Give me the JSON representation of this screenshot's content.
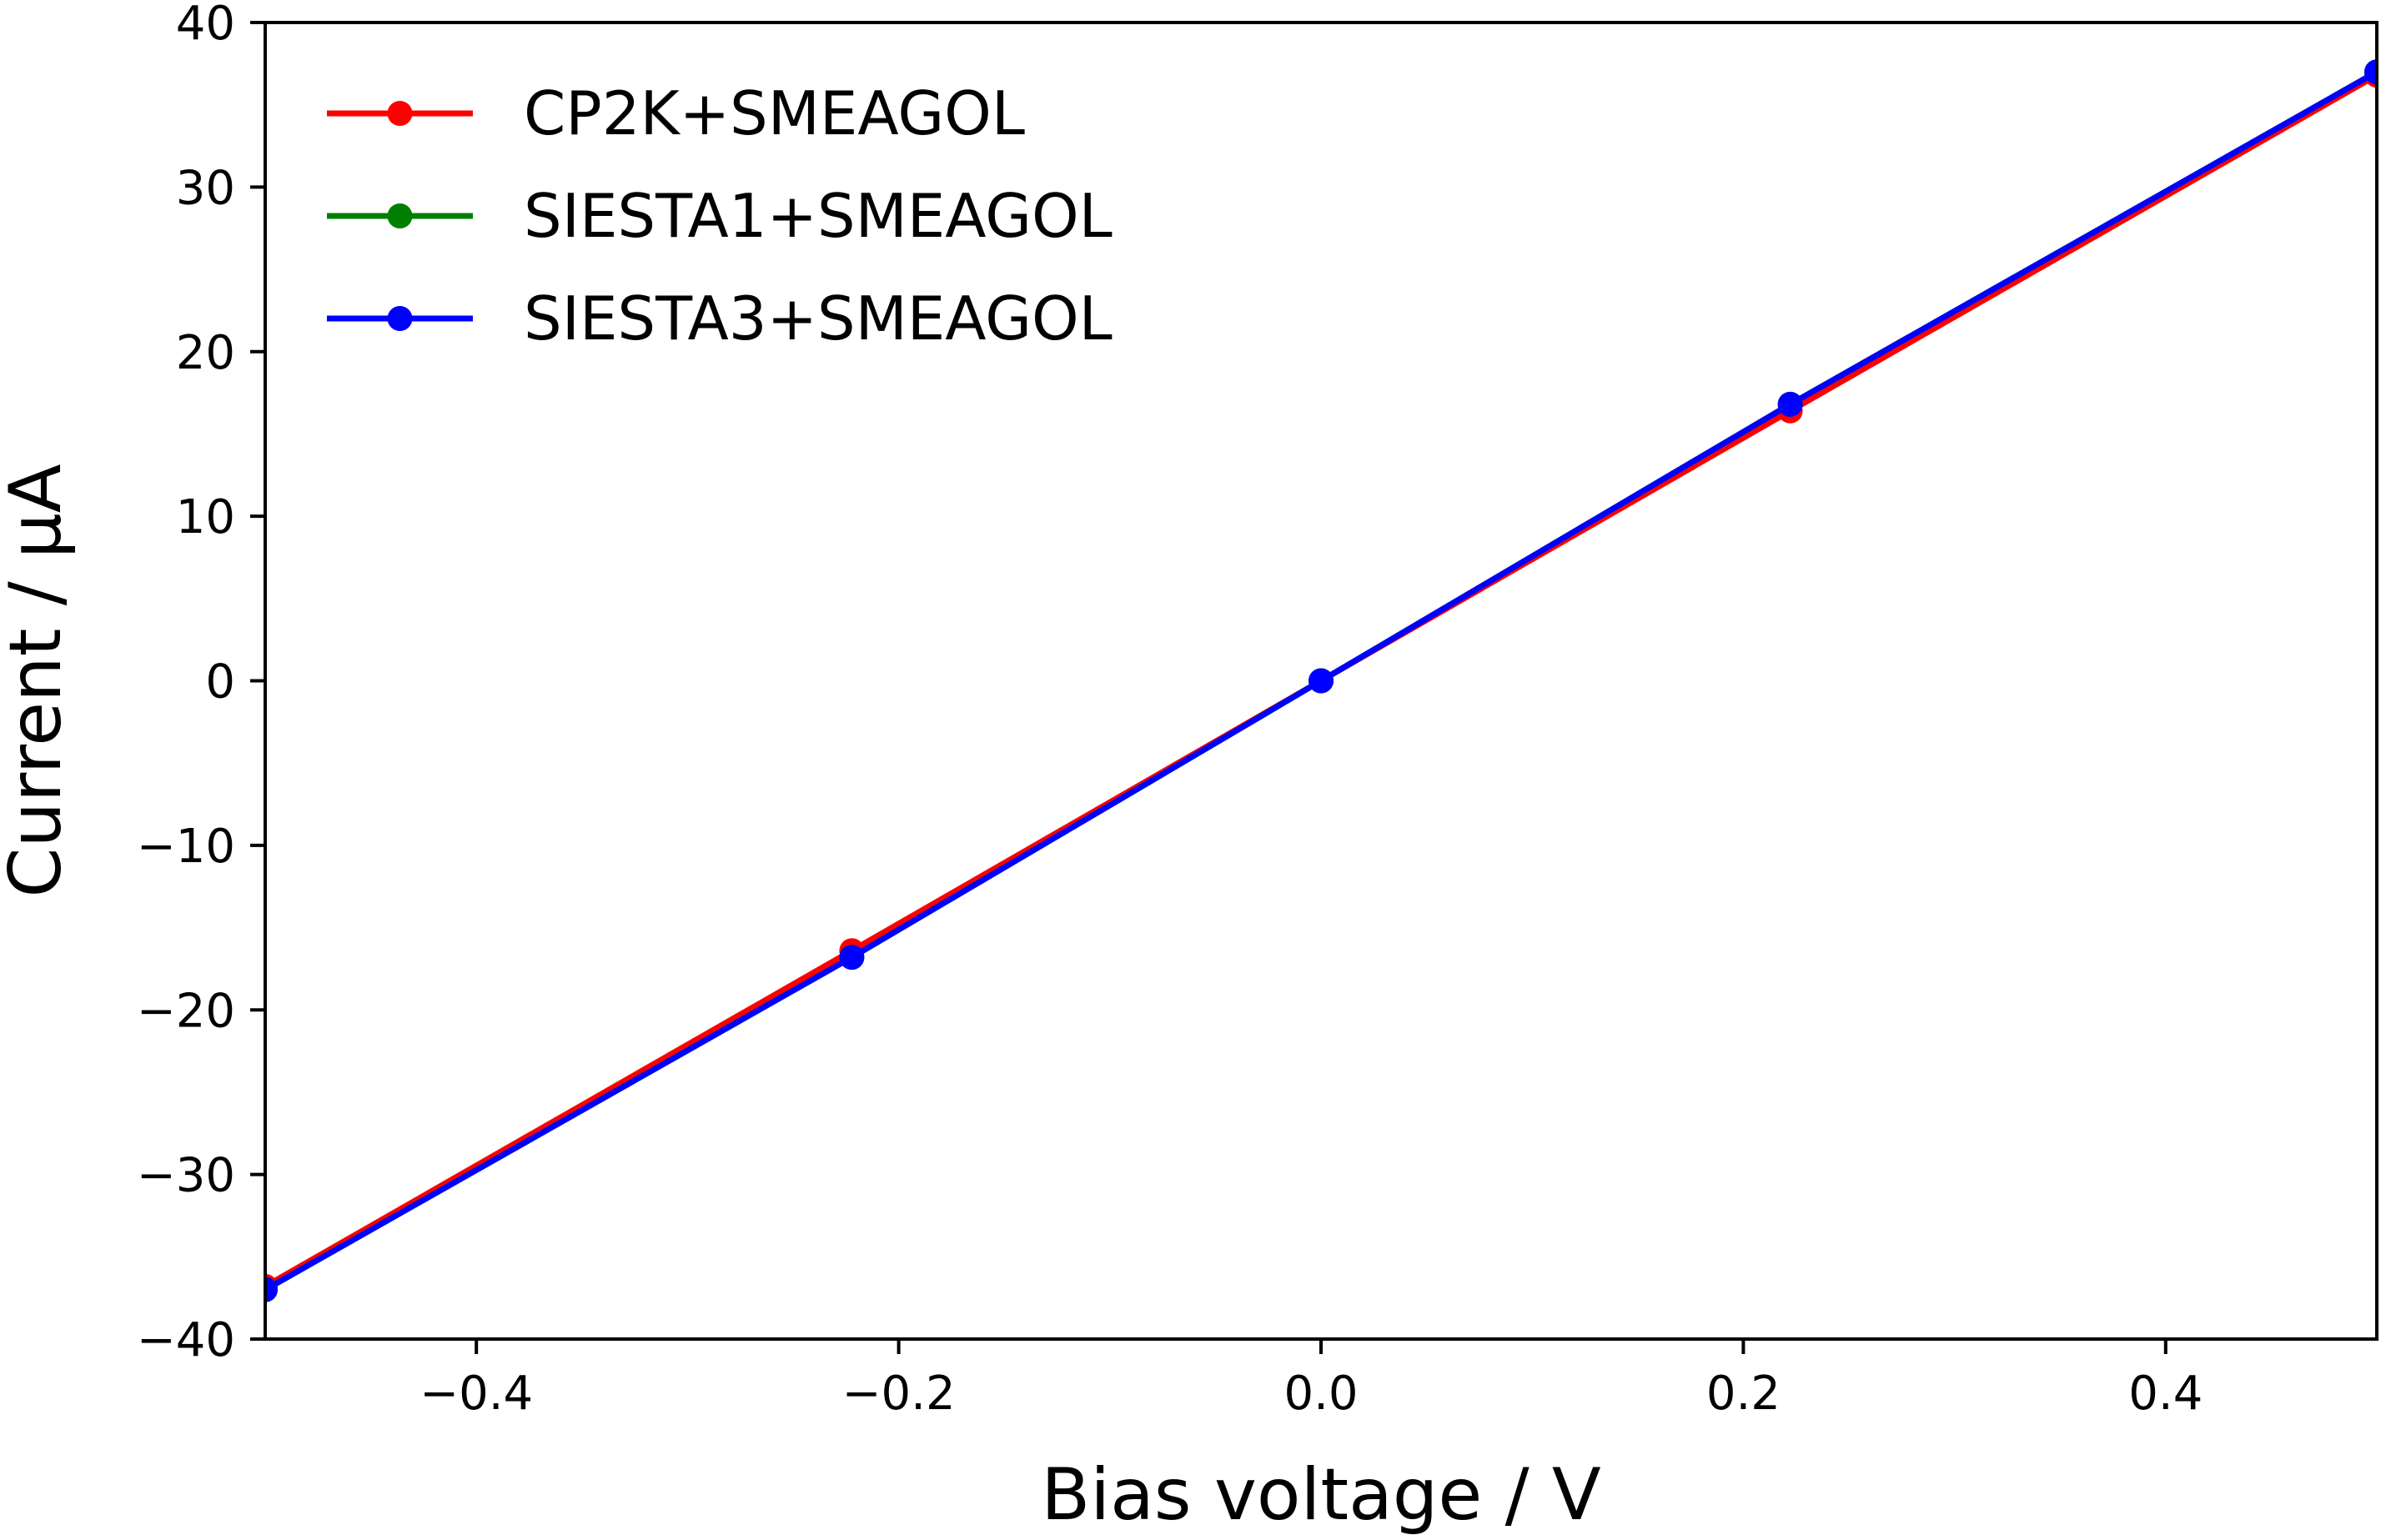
{
  "chart_data": {
    "type": "line",
    "title": "",
    "xlabel": "Bias voltage / V",
    "ylabel": "Current / μA",
    "xlim": [
      -0.5,
      0.5
    ],
    "ylim": [
      -40,
      40
    ],
    "grid": false,
    "legend_position": "top-left",
    "x_ticks": [
      -0.4,
      -0.2,
      0.0,
      0.2,
      0.4
    ],
    "x_tick_labels": [
      "−0.4",
      "−0.2",
      "0.0",
      "0.2",
      "0.4"
    ],
    "y_ticks": [
      -40,
      -30,
      -20,
      -10,
      0,
      10,
      20,
      30,
      40
    ],
    "y_tick_labels": [
      "−40",
      "−30",
      "−20",
      "−10",
      "0",
      "10",
      "20",
      "30",
      "40"
    ],
    "series": [
      {
        "name": "CP2K+SMEAGOL",
        "color": "#ff0000",
        "x": [
          -0.5,
          -0.2222,
          0.0,
          0.2222,
          0.5
        ],
        "y": [
          -36.8,
          -16.4,
          0.0,
          16.4,
          36.8
        ]
      },
      {
        "name": "SIESTA1+SMEAGOL",
        "color": "#008000",
        "x": [
          -0.5,
          -0.2222,
          0.0,
          0.2222,
          0.5
        ],
        "y": [
          -37.0,
          -16.8,
          0.0,
          16.8,
          37.0
        ]
      },
      {
        "name": "SIESTA3+SMEAGOL",
        "color": "#0000ff",
        "x": [
          -0.5,
          -0.2222,
          0.0,
          0.2222,
          0.5
        ],
        "y": [
          -37.0,
          -16.8,
          0.0,
          16.8,
          37.0
        ]
      }
    ]
  }
}
